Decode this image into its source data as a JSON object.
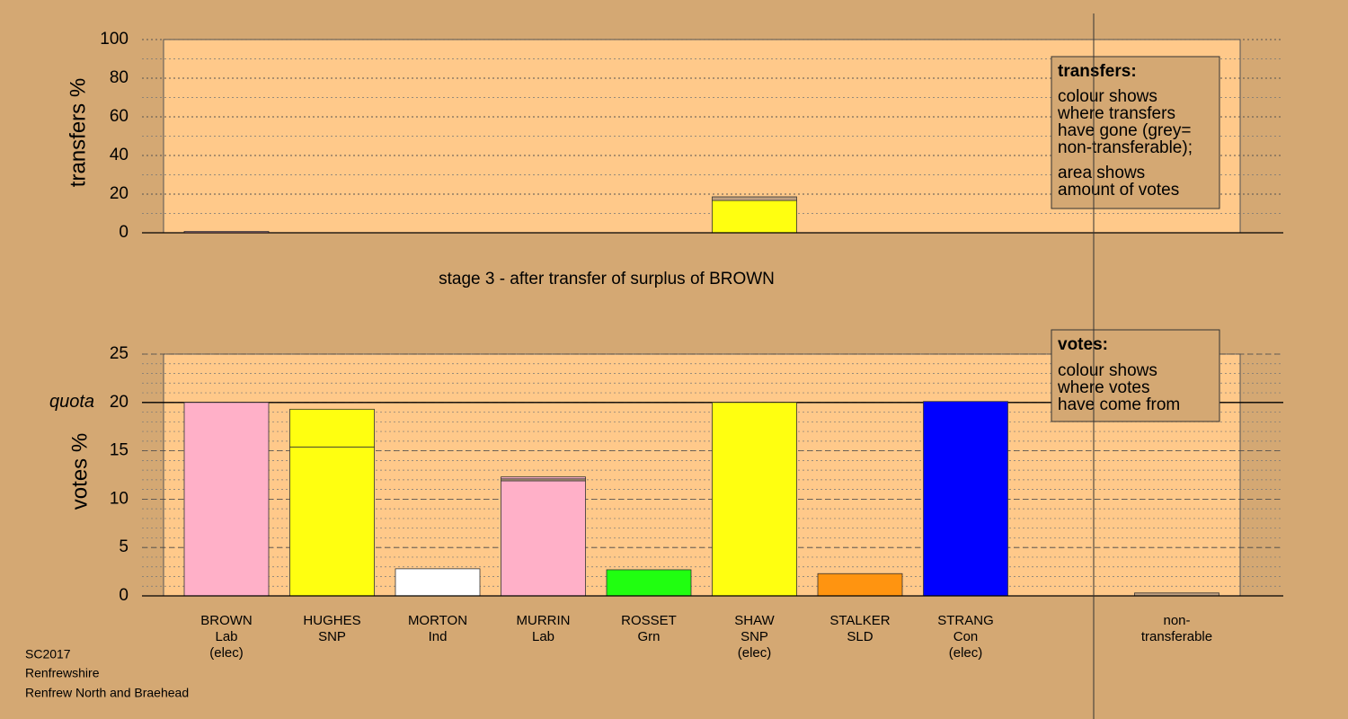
{
  "chart_data": [
    {
      "type": "bar",
      "ylabel": "transfers %",
      "ylim": [
        0,
        100
      ],
      "yticks": [
        0,
        20,
        40,
        60,
        80,
        100
      ],
      "minor_grid_step": 10,
      "legend_title": "transfers:",
      "legend_text": [
        [
          "colour shows",
          "where transfers",
          "have gone (grey=",
          "non-transferable);"
        ],
        [
          "area shows",
          "amount of votes"
        ]
      ],
      "series": [
        {
          "colors": [
            "#ffb0c8",
            "#ffff10",
            "#ffffff",
            "#ffb0c8",
            "#20ff10",
            "#ffff10",
            "#ff9410",
            "#0000ff",
            "#c0a080",
            "#c0a080"
          ],
          "values": [
            0.7,
            0,
            0,
            0,
            0,
            16.7,
            0,
            0,
            0,
            0
          ]
        },
        {
          "colors": [
            "#c0a080",
            "#c0a080",
            "#c0a080",
            "#c0a080",
            "#c0a080",
            "#c0a080",
            "#c0a080",
            "#c0a080",
            "#c0a080",
            "#c0a080"
          ],
          "values": [
            0,
            0,
            0,
            0,
            0,
            1.9,
            0,
            0,
            0,
            0
          ]
        }
      ]
    },
    {
      "type": "bar",
      "title": "stage 3 - after transfer of surplus of BROWN",
      "ylabel": "votes %",
      "ylim": [
        0,
        25
      ],
      "yticks": [
        0,
        5,
        10,
        15,
        20,
        25
      ],
      "minor_grid_step": 1,
      "quota": 20,
      "quota_label": "quota",
      "legend_title": "votes:",
      "legend_text": [
        [
          "colour shows",
          "where votes",
          "have come from"
        ]
      ],
      "categories": [
        [
          "BROWN",
          "Lab",
          "(elec)"
        ],
        [
          "HUGHES",
          "SNP"
        ],
        [
          "MORTON",
          "Ind"
        ],
        [
          "MURRIN",
          "Lab"
        ],
        [
          "ROSSET",
          "Grn"
        ],
        [
          "SHAW",
          "SNP",
          "(elec)"
        ],
        [
          "STALKER",
          "SLD"
        ],
        [
          "STRANG",
          "Con",
          "(elec)"
        ],
        null,
        [
          "non-",
          "transferable"
        ]
      ],
      "series": [
        {
          "colors": [
            "#ffb0c8",
            "#ffff10",
            "#ffffff",
            "#ffb0c8",
            "#20ff10",
            "#ffff10",
            "#ff9410",
            "#0000ff",
            "#c0a080",
            "#c0a080"
          ],
          "values": [
            20,
            15.4,
            2.8,
            11.9,
            2.7,
            20,
            2.3,
            20.1,
            0,
            0.3
          ]
        },
        {
          "colors": [
            "#c0a080",
            "#ffff10",
            "#c0a080",
            "#c0a080",
            "#c0a080",
            "#c0a080",
            "#c0a080",
            "#c0a080",
            "#c0a080",
            "#c0a080"
          ],
          "values": [
            0,
            3.9,
            0,
            0.2,
            0,
            0,
            0,
            0,
            0,
            0
          ]
        },
        {
          "colors": [
            "#ffb0c8",
            "#ffb0c8",
            "#ffb0c8",
            "#ffb0c8",
            "#ffb0c8",
            "#ffb0c8",
            "#ffb0c8",
            "#ffb0c8",
            "#ffb0c8",
            "#ffb0c8"
          ],
          "values": [
            0,
            0,
            0,
            0.2,
            0,
            0,
            0,
            0,
            0,
            0
          ]
        }
      ]
    }
  ],
  "footer": [
    "SC2017",
    "Renfrewshire",
    "Renfrew North and Braehead"
  ]
}
